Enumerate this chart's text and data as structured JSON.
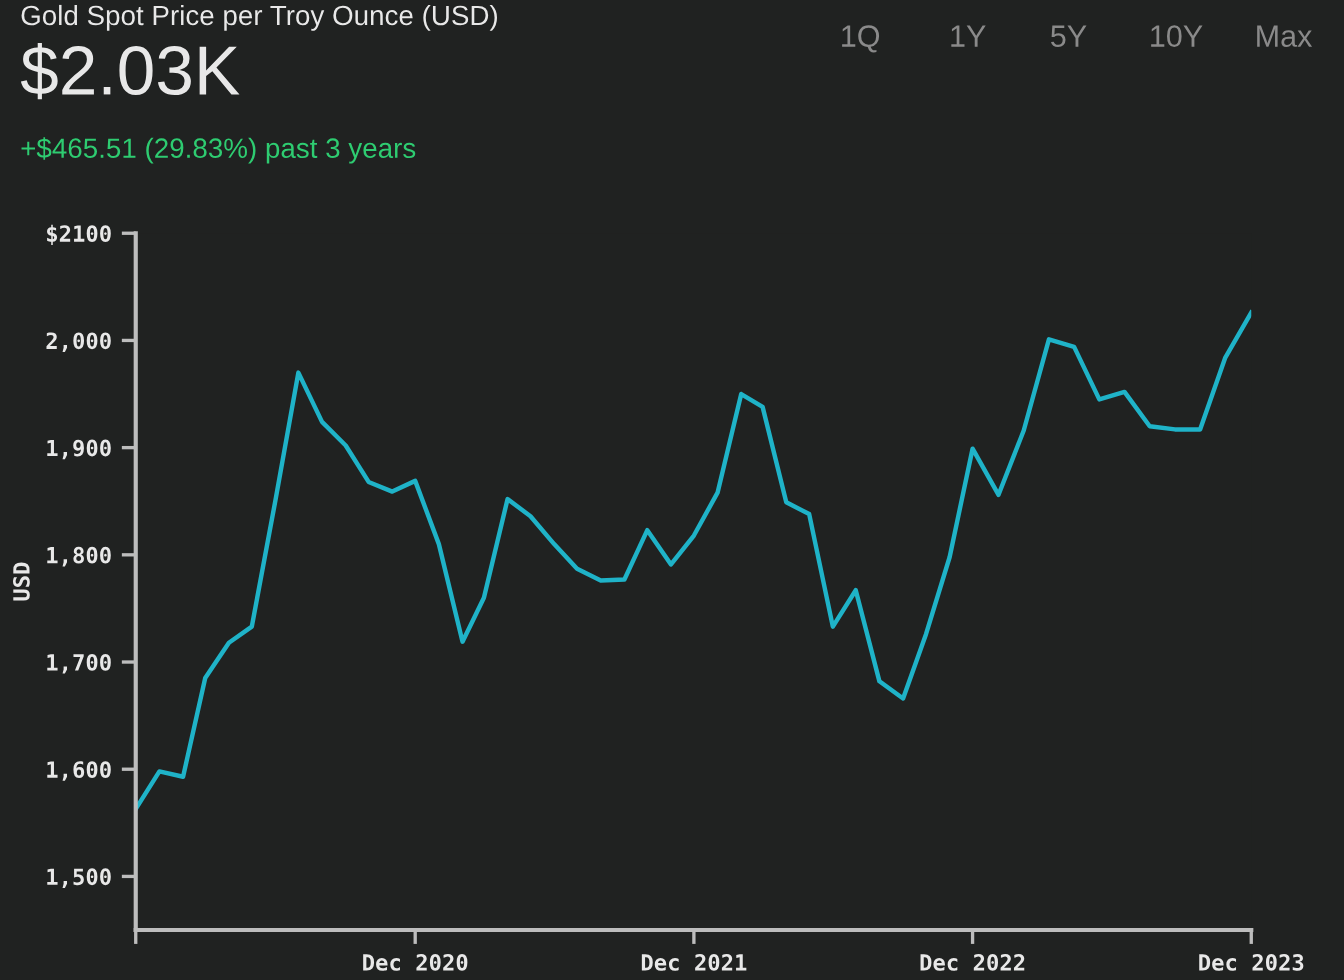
{
  "chart_data": {
    "type": "line",
    "title": "Gold Spot Price per Troy Ounce (USD)",
    "subtitle": "$2.03K",
    "annotations": [
      "+$465.51 (29.83%) past 3 years",
      "1Q",
      "1Y",
      "5Y",
      "10Y",
      "Max"
    ],
    "ylabel": "USD",
    "x": [
      "2019-12",
      "2020-01",
      "2020-02",
      "2020-03",
      "2020-04",
      "2020-05",
      "2020-06",
      "2020-07",
      "2020-08",
      "2020-09",
      "2020-10",
      "2020-11",
      "2020-12",
      "2021-01",
      "2021-02",
      "2021-03",
      "2021-04",
      "2021-05",
      "2021-06",
      "2021-07",
      "2021-08",
      "2021-09",
      "2021-10",
      "2021-11",
      "2021-12",
      "2022-01",
      "2022-02",
      "2022-03",
      "2022-04",
      "2022-05",
      "2022-06",
      "2022-07",
      "2022-08",
      "2022-09",
      "2022-10",
      "2022-11",
      "2022-12",
      "2023-01-04",
      "2023-02-06",
      "2023-03-11",
      "2023-04-13",
      "2023-05-16",
      "2023-06-18",
      "2023-07-21",
      "2023-08-23",
      "2023-09-25",
      "2023-10-28",
      "2023-12-01"
    ],
    "series": [
      {
        "color": "#1fb3c8",
        "values": [
          1563,
          1598,
          1593,
          1685,
          1718,
          1733,
          1851,
          1970,
          1924,
          1902,
          1868,
          1859,
          1869,
          1810,
          1719,
          1760,
          1852,
          1836,
          1810,
          1787,
          1776,
          1777,
          1823,
          1791,
          1818,
          1858,
          1950,
          1938,
          1849,
          1838,
          1733,
          1767,
          1682,
          1666,
          1726,
          1798,
          1899,
          1856,
          1916,
          2001,
          1994,
          1945,
          1952,
          1920,
          1917,
          1917,
          1984,
          2026
        ]
      }
    ],
    "xlim": [
      "2019-12",
      "2023-12"
    ],
    "xticks": [
      {
        "value": "2019-12",
        "label": null
      },
      {
        "value": "2020-12",
        "label": "Dec 2020"
      },
      {
        "value": "2021-12",
        "label": "Dec 2021"
      },
      {
        "value": "2022-12",
        "label": "Dec 2022"
      },
      {
        "value": "2023-12",
        "label": "Dec 2023"
      }
    ],
    "ylim": [
      1450,
      2100
    ],
    "yticks": [
      {
        "value": 1500,
        "label": "1,500"
      },
      {
        "value": 1600,
        "label": "1,600"
      },
      {
        "value": 1700,
        "label": "1,700"
      },
      {
        "value": 1800,
        "label": "1,800"
      },
      {
        "value": 1900,
        "label": "1,900"
      },
      {
        "value": 2000,
        "label": "2,000"
      },
      {
        "value": 2100,
        "label": "$2100"
      }
    ],
    "grid": false,
    "legend": false,
    "marker": "none",
    "line_style": "solid"
  }
}
